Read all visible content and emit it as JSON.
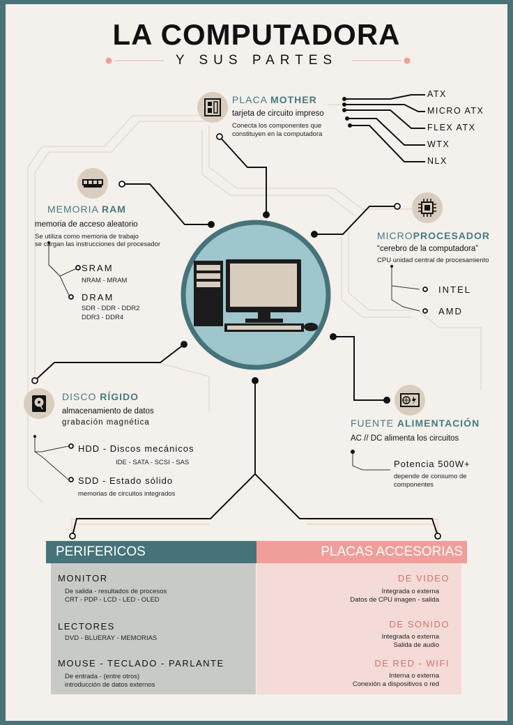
{
  "header": {
    "title": "LA COMPUTADORA",
    "subtitle": "Y SUS PARTES"
  },
  "colors": {
    "teal": "#467379",
    "pink": "#ef9e99",
    "circle": "#9ec6cc",
    "background": "#f4f0eb",
    "badge": "#d8cdbf"
  },
  "placa": {
    "title_a": "PLACA ",
    "title_b": "MOTHER",
    "desc": "tarjeta de circuito impreso",
    "note1": "Conecta los componentes que",
    "note2": "constituyen en la computadora",
    "types": [
      "ATX",
      "MICRO ATX",
      "FLEX ATX",
      "WTX",
      "NLX"
    ],
    "icon": "motherboard-icon"
  },
  "ram": {
    "title_a": "MEMORIA ",
    "title_b": "RAM",
    "desc": "memoria de acceso aleatorio",
    "note1": "Se utiliza como memoria de trabajo",
    "note2": "se cargan las instrucciones del procesador",
    "sram": "SRAM",
    "sram_sub": "NRAM - MRAM",
    "dram": "DRAM",
    "dram_sub1": "SDR - DDR - DDR2",
    "dram_sub2": "DDR3 - DDR4",
    "icon": "ram-module-icon"
  },
  "cpu": {
    "title_a": "MICRO",
    "title_b": "PROCESADOR",
    "desc": "“cerebro de la computadora”",
    "note": "CPU unidad central de procesamiento",
    "brand1": "INTEL",
    "brand2": "AMD",
    "icon": "cpu-chip-icon"
  },
  "disco": {
    "title_a": "DISCO ",
    "title_b": "RÍGIDO",
    "desc1": "almacenamiento de datos",
    "desc2": "grabación  magnética",
    "hdd": "HDD - Discos mecánicos",
    "hdd_sub": "IDE - SATA - SCSI - SAS",
    "sdd": "SDD - Estado sólido",
    "sdd_sub": "memorias de circuitos integrados",
    "icon": "hard-disk-icon"
  },
  "fuente": {
    "title_a": "FUENTE ",
    "title_b": "ALIMENTACIÓN",
    "desc": "AC // DC alimenta los circuitos",
    "power": "Potencia 500W+",
    "note1": "depende de consumo de",
    "note2": "componentes",
    "icon": "power-supply-icon"
  },
  "center": {
    "icon": "desktop-computer-icon"
  },
  "perifericos": {
    "header": "PERIFERICOS",
    "items": [
      {
        "title": "MONITOR",
        "line1": "De salida - resultados de procesos",
        "line2": "CRT - PDP - LCD - LED - OLED"
      },
      {
        "title": "LECTORES",
        "line1": "DVD - BLUERAY - MEMORIAS",
        "line2": ""
      },
      {
        "title": "MOUSE - TECLADO - PARLANTE",
        "line1": "De entrada - (entre otros)",
        "line2": "introducción de datos externos"
      }
    ]
  },
  "placas": {
    "header": "PLACAS ACCESORIAS",
    "items": [
      {
        "title": "DE VIDEO",
        "line1": "Integrada o externa",
        "line2": "Datos de CPU imagen - salida"
      },
      {
        "title": "DE SONIDO",
        "line1": "Integrada o externa",
        "line2": "Salida de audio"
      },
      {
        "title": "DE RED - WIFI",
        "line1": "Interna o externa",
        "line2": "Conexión a dispositivos o red"
      }
    ]
  }
}
